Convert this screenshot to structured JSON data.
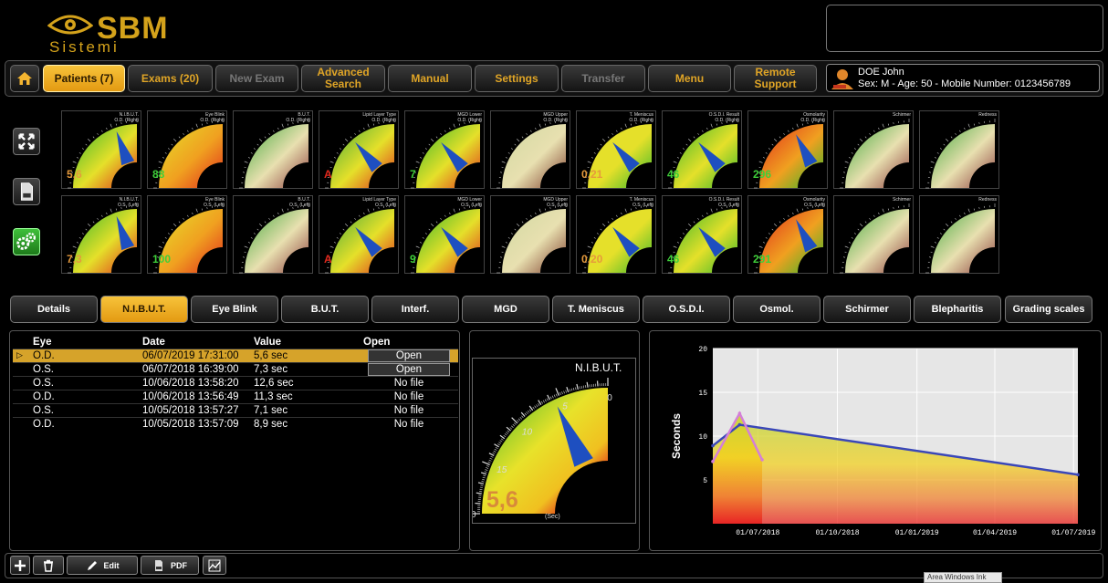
{
  "header": {
    "brand": "SBM",
    "subbrand": "Sistemi"
  },
  "menu": {
    "patients": "Patients (7)",
    "exams": "Exams (20)",
    "new_exam": "New Exam",
    "advanced_search": "Advanced Search",
    "manual": "Manual",
    "settings": "Settings",
    "transfer": "Transfer",
    "menu": "Menu",
    "remote_support": "Remote Support"
  },
  "patient": {
    "name": "DOE John",
    "info": "Sex: M - Age: 50 - Mobile Number: 0123456789"
  },
  "thumbnails_od": [
    {
      "title": "N.I.B.U.T.",
      "eye": "O.D. (Right)",
      "value": "5,6"
    },
    {
      "title": "Eye Blink",
      "eye": "O.D. (Right)",
      "value": "88"
    },
    {
      "title": "B.U.T.",
      "eye": "O.D. (Right)",
      "value": ""
    },
    {
      "title": "Lipid Layer Type",
      "eye": "O.D. (Right)",
      "value": "A"
    },
    {
      "title": "MGD Lower",
      "eye": "O.D. (Right)",
      "value": "7"
    },
    {
      "title": "MGD Upper",
      "eye": "O.D. (Right)",
      "value": ""
    },
    {
      "title": "T. Meniscus",
      "eye": "O.D. (Right)",
      "value": "0,21"
    },
    {
      "title": "O.S.D.I. Result",
      "eye": "O.D. (Right)",
      "value": "46"
    },
    {
      "title": "Osmolarity",
      "eye": "O.D. (Right)",
      "value": "296"
    },
    {
      "title": "Schirmer",
      "eye": "",
      "value": ""
    },
    {
      "title": "Redness",
      "eye": "",
      "value": ""
    }
  ],
  "thumbnails_os": [
    {
      "title": "N.I.B.U.T.",
      "eye": "O.S. (Left)",
      "value": "7,3"
    },
    {
      "title": "Eye Blink",
      "eye": "O.S. (Left)",
      "value": "100"
    },
    {
      "title": "B.U.T.",
      "eye": "O.S. (Left)",
      "value": ""
    },
    {
      "title": "Lipid Layer Type",
      "eye": "O.S. (Left)",
      "value": "A"
    },
    {
      "title": "MGD Lower",
      "eye": "O.S. (Left)",
      "value": "9"
    },
    {
      "title": "MGD Upper",
      "eye": "O.S. (Left)",
      "value": ""
    },
    {
      "title": "T. Meniscus",
      "eye": "O.S. (Left)",
      "value": "0,20"
    },
    {
      "title": "O.S.D.I. Result",
      "eye": "O.S. (Left)",
      "value": "46"
    },
    {
      "title": "Osmolarity",
      "eye": "O.S. (Left)",
      "value": "291"
    },
    {
      "title": "Schirmer",
      "eye": "",
      "value": ""
    },
    {
      "title": "Redness",
      "eye": "",
      "value": ""
    }
  ],
  "tabs": [
    "Details",
    "N.I.B.U.T.",
    "Eye Blink",
    "B.U.T.",
    "Interf.",
    "MGD",
    "T. Meniscus",
    "O.S.D.I.",
    "Osmol.",
    "Schirmer",
    "Blepharitis",
    "Grading scales"
  ],
  "table": {
    "headers": {
      "eye": "Eye",
      "date": "Date",
      "value": "Value",
      "open": "Open"
    },
    "rows": [
      {
        "eye": "O.D.",
        "date": "06/07/2019 17:31:00",
        "value": "5,6 sec",
        "open": "Open"
      },
      {
        "eye": "O.S.",
        "date": "06/07/2018 16:39:00",
        "value": "7,3 sec",
        "open": "Open"
      },
      {
        "eye": "O.S.",
        "date": "10/06/2018 13:58:20",
        "value": "12,6 sec",
        "open": "No file"
      },
      {
        "eye": "O.D.",
        "date": "10/06/2018 13:56:49",
        "value": "11,3 sec",
        "open": "No file"
      },
      {
        "eye": "O.S.",
        "date": "10/05/2018 13:57:27",
        "value": "7,1 sec",
        "open": "No file"
      },
      {
        "eye": "O.D.",
        "date": "10/05/2018 13:57:09",
        "value": "8,9 sec",
        "open": "No file"
      }
    ]
  },
  "big_gauge": {
    "label": "N.I.B.U.T.",
    "value": "5,6",
    "unit": "(Sec)",
    "max": 20,
    "ticks": [
      "20",
      "15",
      "10",
      "5",
      "0"
    ],
    "reading": 5.6
  },
  "chart_data": {
    "type": "line",
    "ylabel": "Seconds",
    "ylim": [
      0,
      20
    ],
    "yticks": [
      20,
      15,
      10,
      5
    ],
    "xticks": [
      "01/07/2018",
      "01/10/2018",
      "01/01/2019",
      "01/04/2019",
      "01/07/2019"
    ],
    "series": [
      {
        "x": [
          "2018-05-10",
          "2018-06-10",
          "2019-07-06"
        ],
        "values": [
          8.9,
          11.3,
          5.6
        ],
        "color": "#3a47b8"
      },
      {
        "x": [
          "2018-05-10",
          "2018-06-10",
          "2018-07-06"
        ],
        "values": [
          7.1,
          12.6,
          7.3
        ],
        "color": "#d47fd8"
      }
    ],
    "grid": true
  },
  "toolbar": {
    "edit": "Edit",
    "pdf": "PDF"
  },
  "tooltip": "Area Windows Ink"
}
